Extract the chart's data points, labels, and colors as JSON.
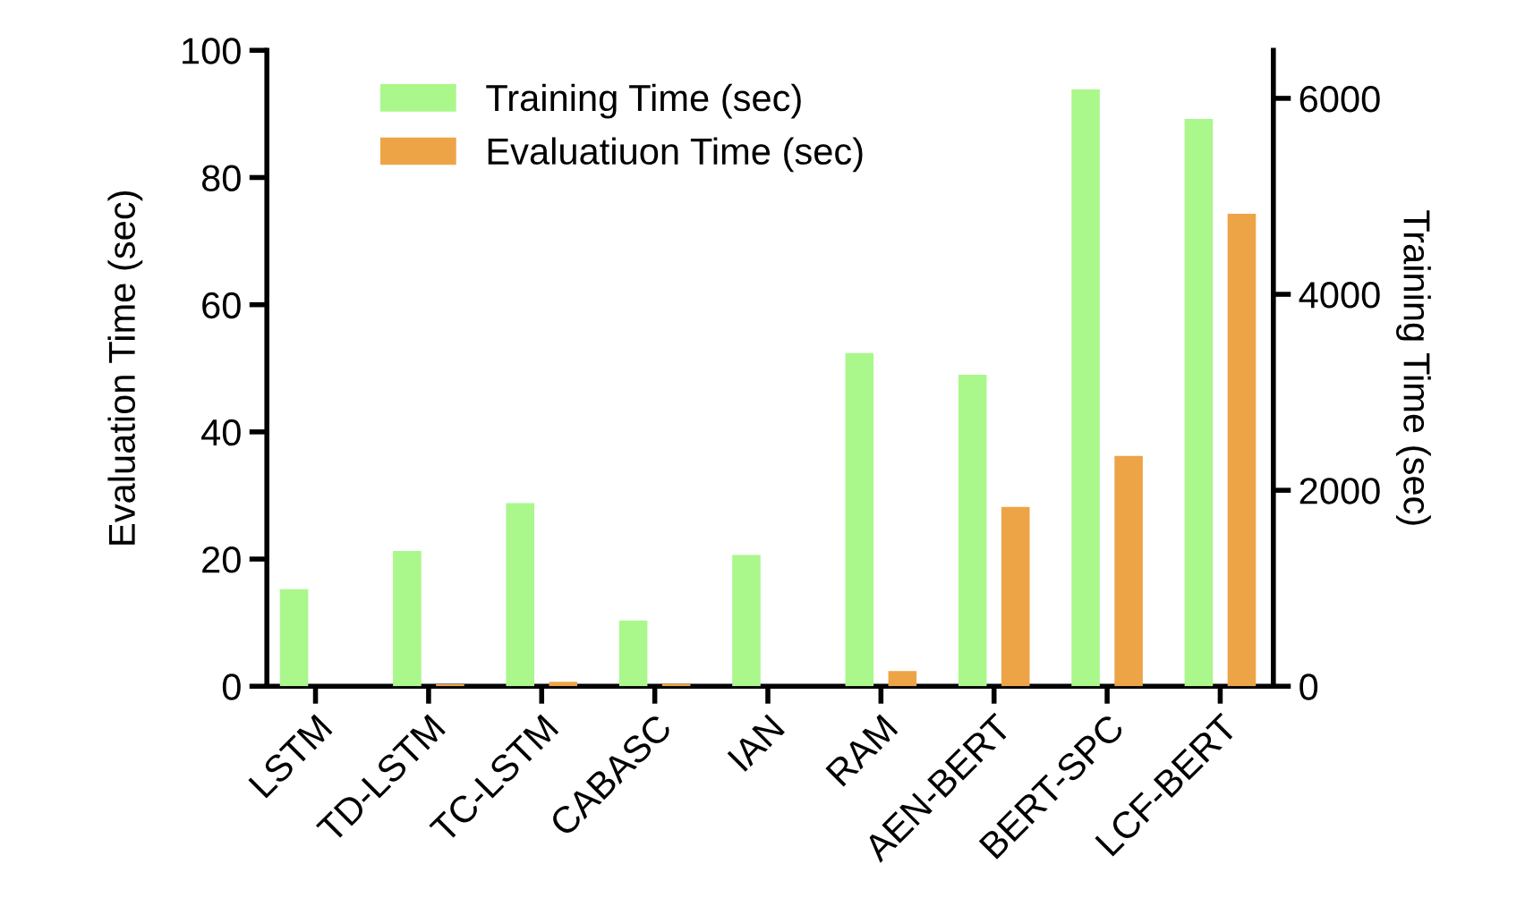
{
  "chart_data": {
    "type": "bar",
    "categories": [
      "LSTM",
      "TD-LSTM",
      "TC-LSTM",
      "CABASC",
      "IAN",
      "RAM",
      "AEN-BERT",
      "BERT-SPC",
      "LCF-BERT"
    ],
    "series": [
      {
        "name": "Training Time (sec)",
        "color": "#aaf78c",
        "axis": "y2",
        "values": [
          990,
          1380,
          1870,
          670,
          1340,
          3400,
          3180,
          6090,
          5790
        ]
      },
      {
        "name": "Evaluatiuon Time (sec)",
        "color": "#eda447",
        "axis": "y",
        "values": [
          null,
          0.3,
          0.7,
          0.4,
          null,
          2.4,
          28.2,
          36.2,
          74.3
        ]
      }
    ],
    "ylabel": "Evaluation Time (sec)",
    "y2label": "Training Time (sec)",
    "ylim": [
      0,
      100
    ],
    "yticks": [
      0,
      20,
      40,
      60,
      80,
      100
    ],
    "y2lim": [
      0,
      6490
    ],
    "y2ticks": [
      0,
      2000,
      4000,
      6000
    ],
    "grid": false,
    "legend": "top left"
  }
}
